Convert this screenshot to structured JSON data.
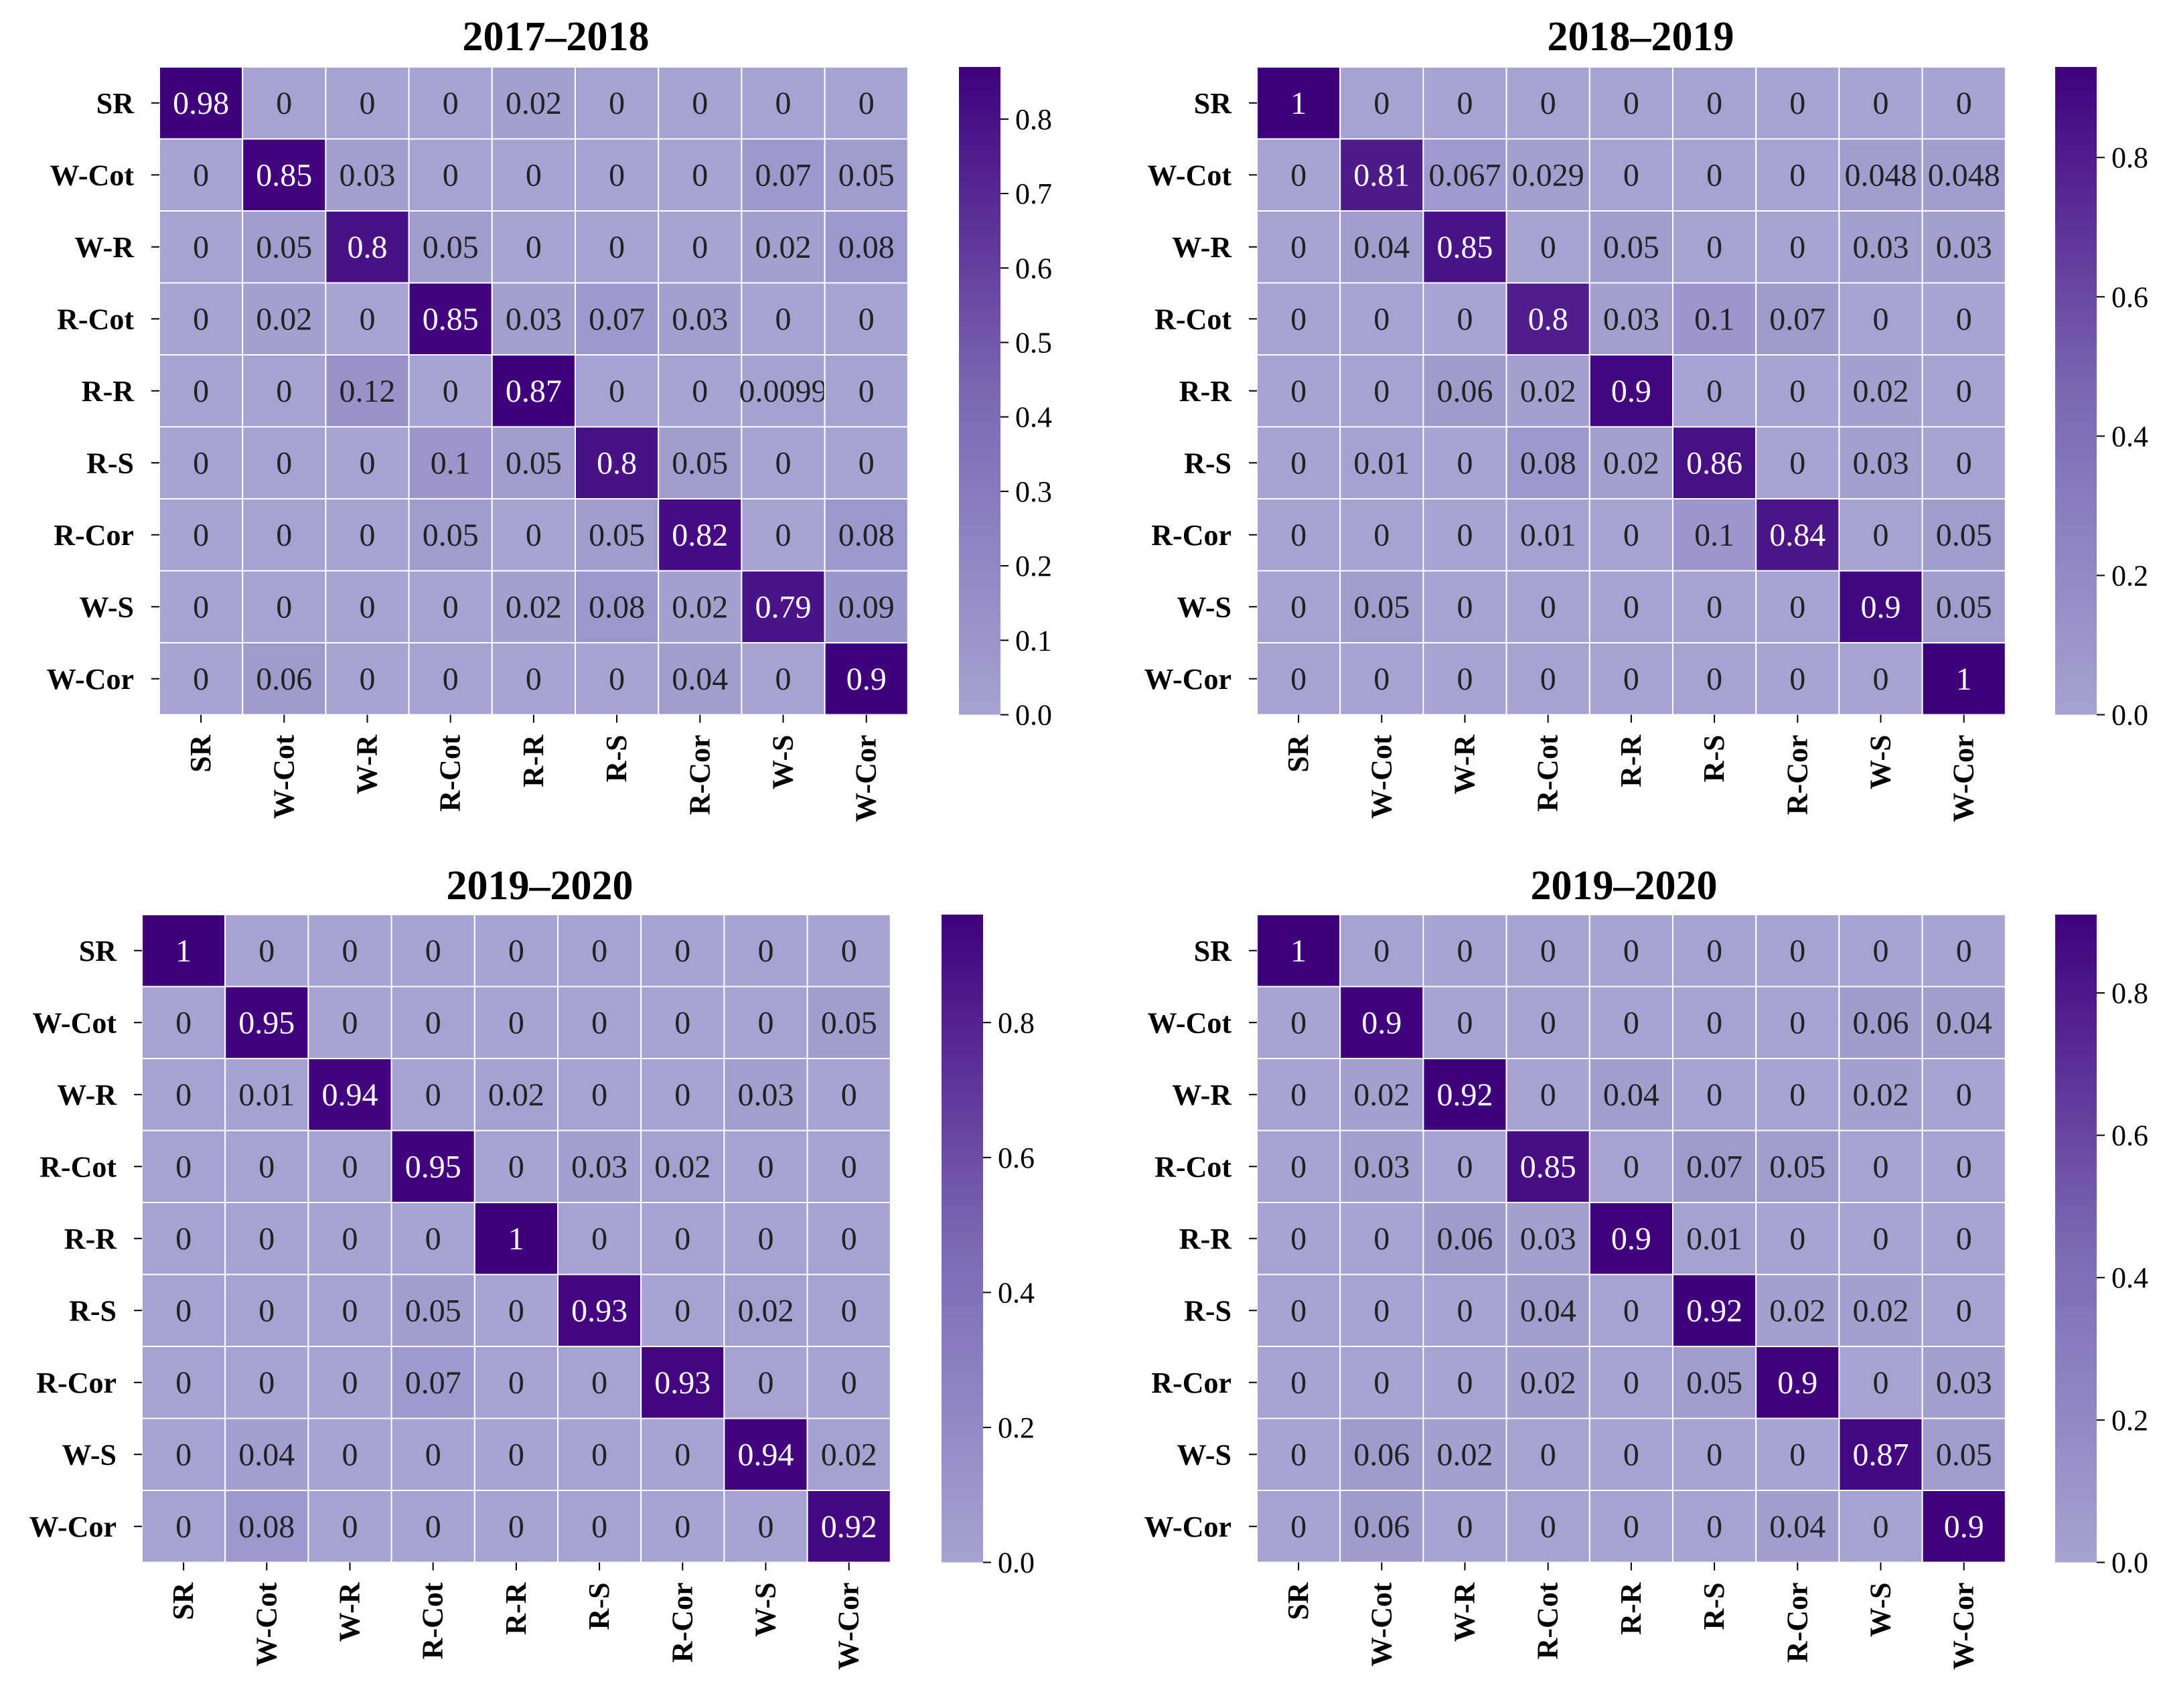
{
  "colors": {
    "low": "#a5a3d1",
    "high": "#3f007d",
    "grid": "#ffffff",
    "text_dark": "#222222",
    "text_light": "#ffffff"
  },
  "chart_data": [
    {
      "type": "heatmap",
      "title": "2017–2018",
      "row_labels": [
        "SR",
        "W-Cot",
        "W-R",
        "R-Cot",
        "R-R",
        "R-S",
        "R-Cor",
        "W-S",
        "W-Cor"
      ],
      "col_labels": [
        "SR",
        "W-Cot",
        "W-R",
        "R-Cot",
        "R-R",
        "R-S",
        "R-Cor",
        "W-S",
        "W-Cor"
      ],
      "cells": [
        [
          "0.98",
          "0",
          "0",
          "0",
          "0.02",
          "0",
          "0",
          "0",
          "0"
        ],
        [
          "0",
          "0.85",
          "0.03",
          "0",
          "0",
          "0",
          "0",
          "0.07",
          "0.05"
        ],
        [
          "0",
          "0.05",
          "0.8",
          "0.05",
          "0",
          "0",
          "0",
          "0.02",
          "0.08"
        ],
        [
          "0",
          "0.02",
          "0",
          "0.85",
          "0.03",
          "0.07",
          "0.03",
          "0",
          "0"
        ],
        [
          "0",
          "0",
          "0.12",
          "0",
          "0.87",
          "0",
          "0",
          "0.0099",
          "0"
        ],
        [
          "0",
          "0",
          "0",
          "0.1",
          "0.05",
          "0.8",
          "0.05",
          "0",
          "0"
        ],
        [
          "0",
          "0",
          "0",
          "0.05",
          "0",
          "0.05",
          "0.82",
          "0",
          "0.08"
        ],
        [
          "0",
          "0",
          "0",
          "0",
          "0.02",
          "0.08",
          "0.02",
          "0.79",
          "0.09"
        ],
        [
          "0",
          "0.06",
          "0",
          "0",
          "0",
          "0",
          "0.04",
          "0",
          "0.9"
        ]
      ],
      "colorbar": {
        "vmin": 0,
        "vmax": 0.87,
        "ticks": [
          "0.0",
          "0.1",
          "0.2",
          "0.3",
          "0.4",
          "0.5",
          "0.6",
          "0.7",
          "0.8"
        ],
        "tick_values": [
          0,
          0.1,
          0.2,
          0.3,
          0.4,
          0.5,
          0.6,
          0.7,
          0.8
        ]
      }
    },
    {
      "type": "heatmap",
      "title": "2018–2019",
      "row_labels": [
        "SR",
        "W-Cot",
        "W-R",
        "R-Cot",
        "R-R",
        "R-S",
        "R-Cor",
        "W-S",
        "W-Cor"
      ],
      "col_labels": [
        "SR",
        "W-Cot",
        "W-R",
        "R-Cot",
        "R-R",
        "R-S",
        "R-Cor",
        "W-S",
        "W-Cor"
      ],
      "cells": [
        [
          "1",
          "0",
          "0",
          "0",
          "0",
          "0",
          "0",
          "0",
          "0"
        ],
        [
          "0",
          "0.81",
          "0.067",
          "0.029",
          "0",
          "0",
          "0",
          "0.048",
          "0.048"
        ],
        [
          "0",
          "0.04",
          "0.85",
          "0",
          "0.05",
          "0",
          "0",
          "0.03",
          "0.03"
        ],
        [
          "0",
          "0",
          "0",
          "0.8",
          "0.03",
          "0.1",
          "0.07",
          "0",
          "0"
        ],
        [
          "0",
          "0",
          "0.06",
          "0.02",
          "0.9",
          "0",
          "0",
          "0.02",
          "0"
        ],
        [
          "0",
          "0.01",
          "0",
          "0.08",
          "0.02",
          "0.86",
          "0",
          "0.03",
          "0"
        ],
        [
          "0",
          "0",
          "0",
          "0.01",
          "0",
          "0.1",
          "0.84",
          "0",
          "0.05"
        ],
        [
          "0",
          "0.05",
          "0",
          "0",
          "0",
          "0",
          "0",
          "0.9",
          "0.05"
        ],
        [
          "0",
          "0",
          "0",
          "0",
          "0",
          "0",
          "0",
          "0",
          "1"
        ]
      ],
      "colorbar": {
        "vmin": 0,
        "vmax": 0.93,
        "ticks": [
          "0.0",
          "0.2",
          "0.4",
          "0.6",
          "0.8"
        ],
        "tick_values": [
          0,
          0.2,
          0.4,
          0.6,
          0.8
        ]
      }
    },
    {
      "type": "heatmap",
      "title": "2019–2020",
      "row_labels": [
        "SR",
        "W-Cot",
        "W-R",
        "R-Cot",
        "R-R",
        "R-S",
        "R-Cor",
        "W-S",
        "W-Cor"
      ],
      "col_labels": [
        "SR",
        "W-Cot",
        "W-R",
        "R-Cot",
        "R-R",
        "R-S",
        "R-Cor",
        "W-S",
        "W-Cor"
      ],
      "cells": [
        [
          "1",
          "0",
          "0",
          "0",
          "0",
          "0",
          "0",
          "0",
          "0"
        ],
        [
          "0",
          "0.95",
          "0",
          "0",
          "0",
          "0",
          "0",
          "0",
          "0.05"
        ],
        [
          "0",
          "0.01",
          "0.94",
          "0",
          "0.02",
          "0",
          "0",
          "0.03",
          "0"
        ],
        [
          "0",
          "0",
          "0",
          "0.95",
          "0",
          "0.03",
          "0.02",
          "0",
          "0"
        ],
        [
          "0",
          "0",
          "0",
          "0",
          "1",
          "0",
          "0",
          "0",
          "0"
        ],
        [
          "0",
          "0",
          "0",
          "0.05",
          "0",
          "0.93",
          "0",
          "0.02",
          "0"
        ],
        [
          "0",
          "0",
          "0",
          "0.07",
          "0",
          "0",
          "0.93",
          "0",
          "0"
        ],
        [
          "0",
          "0.04",
          "0",
          "0",
          "0",
          "0",
          "0",
          "0.94",
          "0.02"
        ],
        [
          "0",
          "0.08",
          "0",
          "0",
          "0",
          "0",
          "0",
          "0",
          "0.92"
        ]
      ],
      "colorbar": {
        "vmin": 0,
        "vmax": 0.96,
        "ticks": [
          "0.0",
          "0.2",
          "0.4",
          "0.6",
          "0.8"
        ],
        "tick_values": [
          0,
          0.2,
          0.4,
          0.6,
          0.8
        ]
      }
    },
    {
      "type": "heatmap",
      "title": "2019–2020",
      "row_labels": [
        "SR",
        "W-Cot",
        "W-R",
        "R-Cot",
        "R-R",
        "R-S",
        "R-Cor",
        "W-S",
        "W-Cor"
      ],
      "col_labels": [
        "SR",
        "W-Cot",
        "W-R",
        "R-Cot",
        "R-R",
        "R-S",
        "R-Cor",
        "W-S",
        "W-Cor"
      ],
      "cells": [
        [
          "1",
          "0",
          "0",
          "0",
          "0",
          "0",
          "0",
          "0",
          "0"
        ],
        [
          "0",
          "0.9",
          "0",
          "0",
          "0",
          "0",
          "0",
          "0.06",
          "0.04"
        ],
        [
          "0",
          "0.02",
          "0.92",
          "0",
          "0.04",
          "0",
          "0",
          "0.02",
          "0"
        ],
        [
          "0",
          "0.03",
          "0",
          "0.85",
          "0",
          "0.07",
          "0.05",
          "0",
          "0"
        ],
        [
          "0",
          "0",
          "0.06",
          "0.03",
          "0.9",
          "0.01",
          "0",
          "0",
          "0"
        ],
        [
          "0",
          "0",
          "0",
          "0.04",
          "0",
          "0.92",
          "0.02",
          "0.02",
          "0"
        ],
        [
          "0",
          "0",
          "0",
          "0.02",
          "0",
          "0.05",
          "0.9",
          "0",
          "0.03"
        ],
        [
          "0",
          "0.06",
          "0.02",
          "0",
          "0",
          "0",
          "0",
          "0.87",
          "0.05"
        ],
        [
          "0",
          "0.06",
          "0",
          "0",
          "0",
          "0",
          "0.04",
          "0",
          "0.9"
        ]
      ],
      "colorbar": {
        "vmin": 0,
        "vmax": 0.91,
        "ticks": [
          "0.0",
          "0.2",
          "0.4",
          "0.6",
          "0.8"
        ],
        "tick_values": [
          0,
          0.2,
          0.4,
          0.6,
          0.8
        ]
      }
    }
  ]
}
